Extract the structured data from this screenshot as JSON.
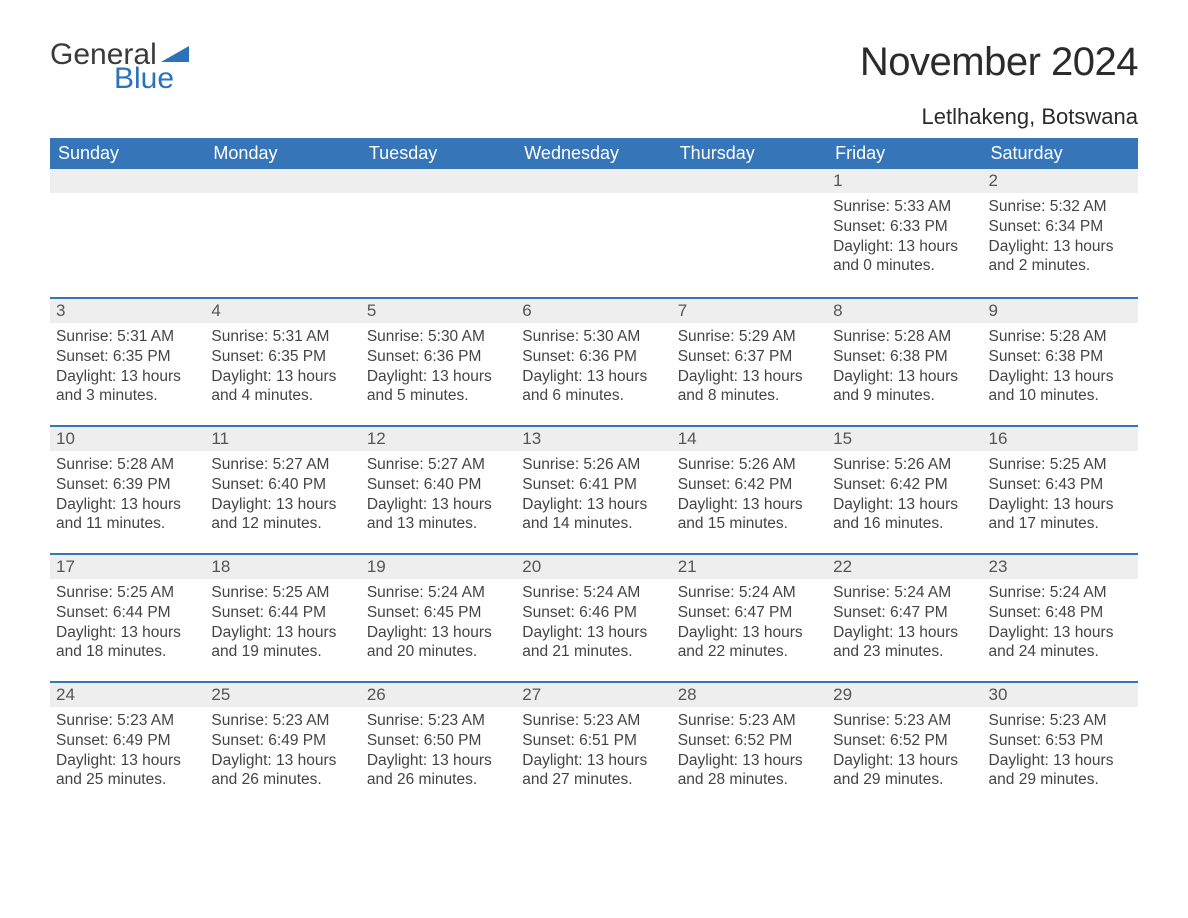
{
  "logo": {
    "text1": "General",
    "text2": "Blue"
  },
  "title": "November 2024",
  "location": "Letlhakeng, Botswana",
  "colors": {
    "header_bg": "#3575b8",
    "header_text": "#ffffff",
    "daynum_bg": "#eeeeee",
    "row_border": "#3575b8",
    "body_text": "#444444",
    "logo_blue": "#2a73b8",
    "title_color": "#2b2b2b"
  },
  "calendar": {
    "type": "table",
    "columns": [
      "Sunday",
      "Monday",
      "Tuesday",
      "Wednesday",
      "Thursday",
      "Friday",
      "Saturday"
    ],
    "weeks": [
      [
        null,
        null,
        null,
        null,
        null,
        {
          "n": 1,
          "sunrise": "5:33 AM",
          "sunset": "6:33 PM",
          "daylight": "13 hours and 0 minutes."
        },
        {
          "n": 2,
          "sunrise": "5:32 AM",
          "sunset": "6:34 PM",
          "daylight": "13 hours and 2 minutes."
        }
      ],
      [
        {
          "n": 3,
          "sunrise": "5:31 AM",
          "sunset": "6:35 PM",
          "daylight": "13 hours and 3 minutes."
        },
        {
          "n": 4,
          "sunrise": "5:31 AM",
          "sunset": "6:35 PM",
          "daylight": "13 hours and 4 minutes."
        },
        {
          "n": 5,
          "sunrise": "5:30 AM",
          "sunset": "6:36 PM",
          "daylight": "13 hours and 5 minutes."
        },
        {
          "n": 6,
          "sunrise": "5:30 AM",
          "sunset": "6:36 PM",
          "daylight": "13 hours and 6 minutes."
        },
        {
          "n": 7,
          "sunrise": "5:29 AM",
          "sunset": "6:37 PM",
          "daylight": "13 hours and 8 minutes."
        },
        {
          "n": 8,
          "sunrise": "5:28 AM",
          "sunset": "6:38 PM",
          "daylight": "13 hours and 9 minutes."
        },
        {
          "n": 9,
          "sunrise": "5:28 AM",
          "sunset": "6:38 PM",
          "daylight": "13 hours and 10 minutes."
        }
      ],
      [
        {
          "n": 10,
          "sunrise": "5:28 AM",
          "sunset": "6:39 PM",
          "daylight": "13 hours and 11 minutes."
        },
        {
          "n": 11,
          "sunrise": "5:27 AM",
          "sunset": "6:40 PM",
          "daylight": "13 hours and 12 minutes."
        },
        {
          "n": 12,
          "sunrise": "5:27 AM",
          "sunset": "6:40 PM",
          "daylight": "13 hours and 13 minutes."
        },
        {
          "n": 13,
          "sunrise": "5:26 AM",
          "sunset": "6:41 PM",
          "daylight": "13 hours and 14 minutes."
        },
        {
          "n": 14,
          "sunrise": "5:26 AM",
          "sunset": "6:42 PM",
          "daylight": "13 hours and 15 minutes."
        },
        {
          "n": 15,
          "sunrise": "5:26 AM",
          "sunset": "6:42 PM",
          "daylight": "13 hours and 16 minutes."
        },
        {
          "n": 16,
          "sunrise": "5:25 AM",
          "sunset": "6:43 PM",
          "daylight": "13 hours and 17 minutes."
        }
      ],
      [
        {
          "n": 17,
          "sunrise": "5:25 AM",
          "sunset": "6:44 PM",
          "daylight": "13 hours and 18 minutes."
        },
        {
          "n": 18,
          "sunrise": "5:25 AM",
          "sunset": "6:44 PM",
          "daylight": "13 hours and 19 minutes."
        },
        {
          "n": 19,
          "sunrise": "5:24 AM",
          "sunset": "6:45 PM",
          "daylight": "13 hours and 20 minutes."
        },
        {
          "n": 20,
          "sunrise": "5:24 AM",
          "sunset": "6:46 PM",
          "daylight": "13 hours and 21 minutes."
        },
        {
          "n": 21,
          "sunrise": "5:24 AM",
          "sunset": "6:47 PM",
          "daylight": "13 hours and 22 minutes."
        },
        {
          "n": 22,
          "sunrise": "5:24 AM",
          "sunset": "6:47 PM",
          "daylight": "13 hours and 23 minutes."
        },
        {
          "n": 23,
          "sunrise": "5:24 AM",
          "sunset": "6:48 PM",
          "daylight": "13 hours and 24 minutes."
        }
      ],
      [
        {
          "n": 24,
          "sunrise": "5:23 AM",
          "sunset": "6:49 PM",
          "daylight": "13 hours and 25 minutes."
        },
        {
          "n": 25,
          "sunrise": "5:23 AM",
          "sunset": "6:49 PM",
          "daylight": "13 hours and 26 minutes."
        },
        {
          "n": 26,
          "sunrise": "5:23 AM",
          "sunset": "6:50 PM",
          "daylight": "13 hours and 26 minutes."
        },
        {
          "n": 27,
          "sunrise": "5:23 AM",
          "sunset": "6:51 PM",
          "daylight": "13 hours and 27 minutes."
        },
        {
          "n": 28,
          "sunrise": "5:23 AM",
          "sunset": "6:52 PM",
          "daylight": "13 hours and 28 minutes."
        },
        {
          "n": 29,
          "sunrise": "5:23 AM",
          "sunset": "6:52 PM",
          "daylight": "13 hours and 29 minutes."
        },
        {
          "n": 30,
          "sunrise": "5:23 AM",
          "sunset": "6:53 PM",
          "daylight": "13 hours and 29 minutes."
        }
      ]
    ],
    "labels": {
      "sunrise": "Sunrise:",
      "sunset": "Sunset:",
      "daylight": "Daylight:"
    }
  }
}
